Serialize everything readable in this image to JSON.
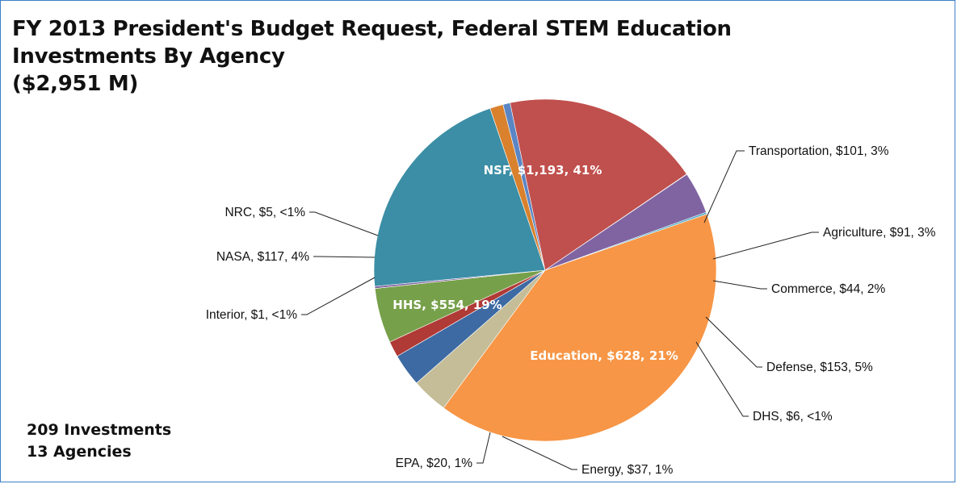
{
  "header": {
    "title_lines": [
      "FY 2013 President's Budget Request, Federal STEM Education",
      "Investments By Agency",
      "($2,951 M)"
    ]
  },
  "summary": {
    "investments": "209 Investments",
    "agencies": "13 Agencies"
  },
  "colors": {
    "NSF": "#f79646",
    "Transportation": "#c4bd97",
    "Agriculture": "#3d6aa3",
    "Commerce": "#b03a36",
    "Defense": "#77a04a",
    "DHS": "#7e62a0",
    "Education": "#3b8ea5",
    "Energy": "#d9812d",
    "EPA": "#5b86c5",
    "HHS": "#c0504d",
    "Interior": "#6f9a46",
    "NASA": "#8064a2",
    "NRC": "#4bacc6"
  },
  "chart_data": {
    "type": "pie",
    "title": "FY 2013 President's Budget Request, Federal STEM Education Investments By Agency ($2,951 M)",
    "total": 2951,
    "slices": [
      {
        "name": "NSF",
        "value": 1193,
        "percent": "41%",
        "label": "NSF, $1,193, 41%"
      },
      {
        "name": "Transportation",
        "value": 101,
        "percent": "3%",
        "label": "Transportation, $101, 3%"
      },
      {
        "name": "Agriculture",
        "value": 91,
        "percent": "3%",
        "label": "Agriculture, $91, 3%"
      },
      {
        "name": "Commerce",
        "value": 44,
        "percent": "2%",
        "label": "Commerce, $44, 2%"
      },
      {
        "name": "Defense",
        "value": 153,
        "percent": "5%",
        "label": "Defense, $153, 5%"
      },
      {
        "name": "DHS",
        "value": 6,
        "percent": "<1%",
        "label": "DHS, $6, <1%"
      },
      {
        "name": "Education",
        "value": 628,
        "percent": "21%",
        "label": "Education, $628, 21%"
      },
      {
        "name": "Energy",
        "value": 37,
        "percent": "1%",
        "label": "Energy, $37, 1%"
      },
      {
        "name": "EPA",
        "value": 20,
        "percent": "1%",
        "label": "EPA, $20, 1%"
      },
      {
        "name": "HHS",
        "value": 554,
        "percent": "19%",
        "label": "HHS, $554, 19%"
      },
      {
        "name": "Interior",
        "value": 1,
        "percent": "<1%",
        "label": "Interior, $1, <1%"
      },
      {
        "name": "NASA",
        "value": 117,
        "percent": "4%",
        "label": "NASA, $117, 4%"
      },
      {
        "name": "NRC",
        "value": 5,
        "percent": "<1%",
        "label": "NRC, $5, <1%"
      }
    ]
  }
}
